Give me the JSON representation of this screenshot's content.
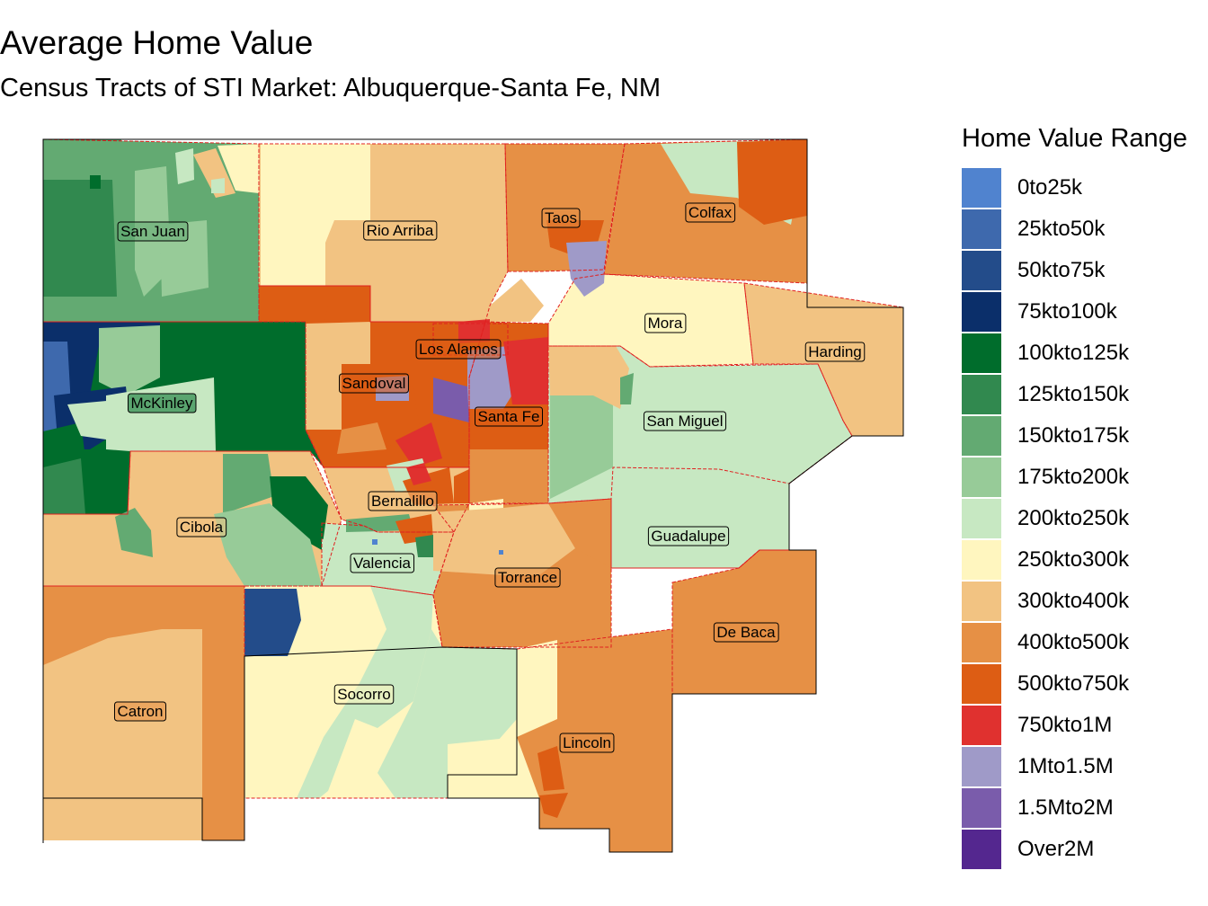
{
  "title": "Average Home Value",
  "subtitle": "Census Tracts of STI Market: Albuquerque-Santa Fe, NM",
  "legend": {
    "title": "Home Value Range",
    "items": [
      {
        "label": "0to25k",
        "color": "#5083cf"
      },
      {
        "label": "25kto50k",
        "color": "#3e69ad"
      },
      {
        "label": "50kto75k",
        "color": "#234c8a"
      },
      {
        "label": "75kto100k",
        "color": "#0b2f6a"
      },
      {
        "label": "100kto125k",
        "color": "#006d2c"
      },
      {
        "label": "125kto150k",
        "color": "#31894f"
      },
      {
        "label": "150kto175k",
        "color": "#63aa72"
      },
      {
        "label": "175kto200k",
        "color": "#97cb98"
      },
      {
        "label": "200kto250k",
        "color": "#c7e8c2"
      },
      {
        "label": "250kto300k",
        "color": "#fff6bf"
      },
      {
        "label": "300kto400k",
        "color": "#f2c382"
      },
      {
        "label": "400kto500k",
        "color": "#e69045"
      },
      {
        "label": "500kto750k",
        "color": "#dd5d14"
      },
      {
        "label": "750kto1M",
        "color": "#e0312f"
      },
      {
        "label": "1Mto1.5M",
        "color": "#9f9ac8"
      },
      {
        "label": "1.5Mto2M",
        "color": "#7a5cab"
      },
      {
        "label": "Over2M",
        "color": "#54278f"
      }
    ]
  },
  "counties": [
    {
      "name": "San Juan",
      "range": "150kto175k"
    },
    {
      "name": "Rio Arriba",
      "range": "300kto400k"
    },
    {
      "name": "Taos",
      "range": "400kto500k"
    },
    {
      "name": "Colfax",
      "range": "400kto500k"
    },
    {
      "name": "Mora",
      "range": "250kto300k"
    },
    {
      "name": "Harding",
      "range": "300kto400k"
    },
    {
      "name": "Los Alamos",
      "range": "500kto750k"
    },
    {
      "name": "Sandoval",
      "range": "500kto750k"
    },
    {
      "name": "Santa Fe",
      "range": "500kto750k"
    },
    {
      "name": "McKinley",
      "range": "100kto125k"
    },
    {
      "name": "San Miguel",
      "range": "200kto250k"
    },
    {
      "name": "Bernalillo",
      "range": "300kto400k"
    },
    {
      "name": "Cibola",
      "range": "300kto400k"
    },
    {
      "name": "Guadalupe",
      "range": "200kto250k"
    },
    {
      "name": "Valencia",
      "range": "200kto250k"
    },
    {
      "name": "Torrance",
      "range": "400kto500k"
    },
    {
      "name": "De Baca",
      "range": "400kto500k"
    },
    {
      "name": "Catron",
      "range": "400kto500k"
    },
    {
      "name": "Socorro",
      "range": "250kto300k"
    },
    {
      "name": "Lincoln",
      "range": "400kto500k"
    }
  ]
}
